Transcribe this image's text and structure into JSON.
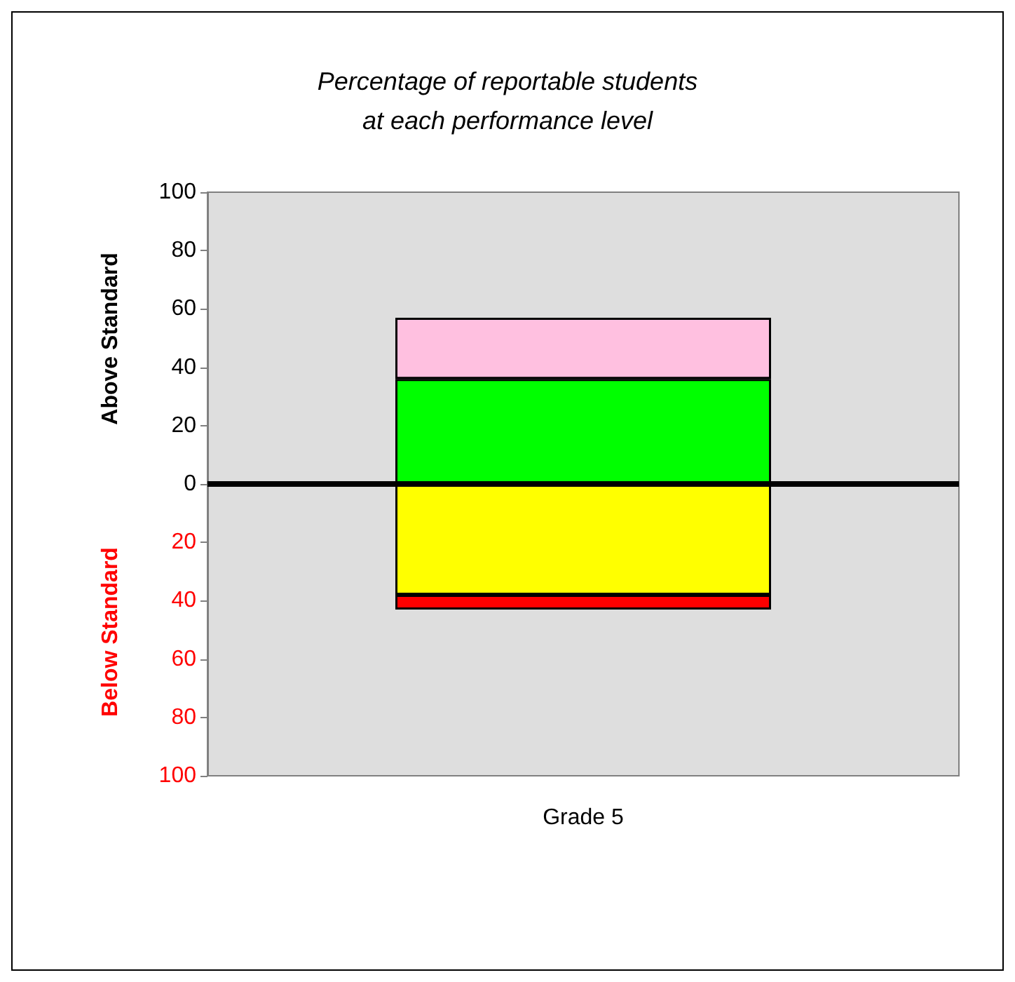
{
  "chart_data": {
    "type": "bar",
    "title": "Percentage of reportable students\nat each performance level",
    "ylabel": "Above Standard",
    "annotations": [
      "Below Standard"
    ],
    "categories": [
      "Grade 5"
    ],
    "stacked": true,
    "series": [
      {
        "color": "#00ff00",
        "values": [
          36
        ]
      },
      {
        "color": "#ffc0e0",
        "values": [
          21
        ]
      },
      {
        "color": "#ffff00",
        "values": [
          -38
        ]
      },
      {
        "color": "#ff0000",
        "values": [
          -5
        ]
      }
    ],
    "ylim": [
      -100,
      100
    ],
    "yticks": [
      {
        "value": -100,
        "label": "100"
      },
      {
        "value": -80,
        "label": "80"
      },
      {
        "value": -60,
        "label": "60"
      },
      {
        "value": -40,
        "label": "40"
      },
      {
        "value": -20,
        "label": "20"
      },
      0,
      20,
      40,
      60,
      80,
      100
    ],
    "ref_lines": [
      {
        "axis": "y",
        "value": 0,
        "color": "#000000"
      }
    ],
    "grid": false
  }
}
